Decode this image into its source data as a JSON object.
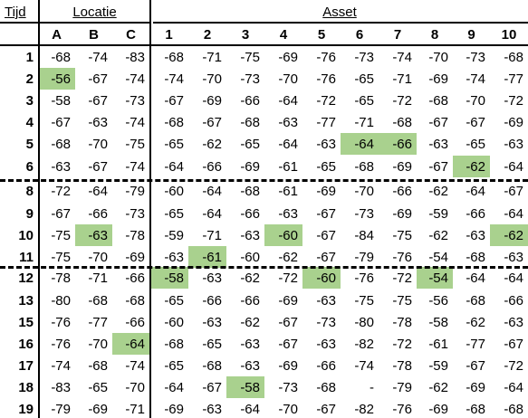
{
  "headers": {
    "tijd": "Tijd",
    "locatie": "Locatie",
    "asset": "Asset",
    "columns": [
      "A",
      "B",
      "C",
      "1",
      "2",
      "3",
      "4",
      "5",
      "6",
      "7",
      "8",
      "9",
      "10"
    ]
  },
  "rows": [
    {
      "label": "1",
      "values": [
        "-68",
        "-74",
        "-83",
        "-68",
        "-71",
        "-75",
        "-69",
        "-76",
        "-73",
        "-74",
        "-70",
        "-73",
        "-68"
      ]
    },
    {
      "label": "2",
      "values": [
        "-56",
        "-67",
        "-74",
        "-74",
        "-70",
        "-73",
        "-70",
        "-76",
        "-65",
        "-71",
        "-69",
        "-74",
        "-77"
      ]
    },
    {
      "label": "3",
      "values": [
        "-58",
        "-67",
        "-73",
        "-67",
        "-69",
        "-66",
        "-64",
        "-72",
        "-65",
        "-72",
        "-68",
        "-70",
        "-72"
      ]
    },
    {
      "label": "4",
      "values": [
        "-67",
        "-63",
        "-74",
        "-68",
        "-67",
        "-68",
        "-63",
        "-77",
        "-71",
        "-68",
        "-67",
        "-67",
        "-69"
      ]
    },
    {
      "label": "5",
      "values": [
        "-68",
        "-70",
        "-75",
        "-65",
        "-62",
        "-65",
        "-64",
        "-63",
        "-64",
        "-66",
        "-63",
        "-65",
        "-63"
      ]
    },
    {
      "label": "6",
      "values": [
        "-63",
        "-67",
        "-74",
        "-64",
        "-66",
        "-69",
        "-61",
        "-65",
        "-68",
        "-69",
        "-67",
        "-62",
        "-64"
      ]
    },
    {
      "label": "8",
      "values": [
        "-72",
        "-64",
        "-79",
        "-60",
        "-64",
        "-68",
        "-61",
        "-69",
        "-70",
        "-66",
        "-62",
        "-64",
        "-67"
      ]
    },
    {
      "label": "9",
      "values": [
        "-67",
        "-66",
        "-73",
        "-65",
        "-64",
        "-66",
        "-63",
        "-67",
        "-73",
        "-69",
        "-59",
        "-66",
        "-64"
      ]
    },
    {
      "label": "10",
      "values": [
        "-75",
        "-63",
        "-78",
        "-59",
        "-71",
        "-63",
        "-60",
        "-67",
        "-84",
        "-75",
        "-62",
        "-63",
        "-62"
      ]
    },
    {
      "label": "11",
      "values": [
        "-75",
        "-70",
        "-69",
        "-63",
        "-61",
        "-60",
        "-62",
        "-67",
        "-79",
        "-76",
        "-54",
        "-68",
        "-63"
      ]
    },
    {
      "label": "12",
      "values": [
        "-78",
        "-71",
        "-66",
        "-58",
        "-63",
        "-62",
        "-72",
        "-60",
        "-76",
        "-72",
        "-54",
        "-64",
        "-64"
      ]
    },
    {
      "label": "13",
      "values": [
        "-80",
        "-68",
        "-68",
        "-65",
        "-66",
        "-66",
        "-69",
        "-63",
        "-75",
        "-75",
        "-56",
        "-68",
        "-66"
      ]
    },
    {
      "label": "15",
      "values": [
        "-76",
        "-77",
        "-66",
        "-60",
        "-63",
        "-62",
        "-67",
        "-73",
        "-80",
        "-78",
        "-58",
        "-62",
        "-63"
      ]
    },
    {
      "label": "16",
      "values": [
        "-76",
        "-70",
        "-64",
        "-68",
        "-65",
        "-63",
        "-67",
        "-63",
        "-82",
        "-72",
        "-61",
        "-77",
        "-67"
      ]
    },
    {
      "label": "17",
      "values": [
        "-74",
        "-68",
        "-74",
        "-65",
        "-68",
        "-63",
        "-69",
        "-66",
        "-74",
        "-78",
        "-59",
        "-67",
        "-72"
      ]
    },
    {
      "label": "18",
      "values": [
        "-83",
        "-65",
        "-70",
        "-64",
        "-67",
        "-58",
        "-73",
        "-68",
        "-",
        "-79",
        "-62",
        "-69",
        "-64"
      ]
    },
    {
      "label": "19",
      "values": [
        "-79",
        "-69",
        "-71",
        "-69",
        "-63",
        "-64",
        "-70",
        "-67",
        "-82",
        "-76",
        "-69",
        "-68",
        "-68"
      ]
    }
  ],
  "highlights": [
    {
      "row": 1,
      "col": 0
    },
    {
      "row": 4,
      "col": 8
    },
    {
      "row": 4,
      "col": 9
    },
    {
      "row": 5,
      "col": 11
    },
    {
      "row": 8,
      "col": 1
    },
    {
      "row": 8,
      "col": 6
    },
    {
      "row": 8,
      "col": 12
    },
    {
      "row": 9,
      "col": 4
    },
    {
      "row": 10,
      "col": 3
    },
    {
      "row": 10,
      "col": 7
    },
    {
      "row": 10,
      "col": 10
    },
    {
      "row": 13,
      "col": 2
    },
    {
      "row": 15,
      "col": 5
    }
  ],
  "colors": {
    "highlight": "#a9d18e"
  }
}
